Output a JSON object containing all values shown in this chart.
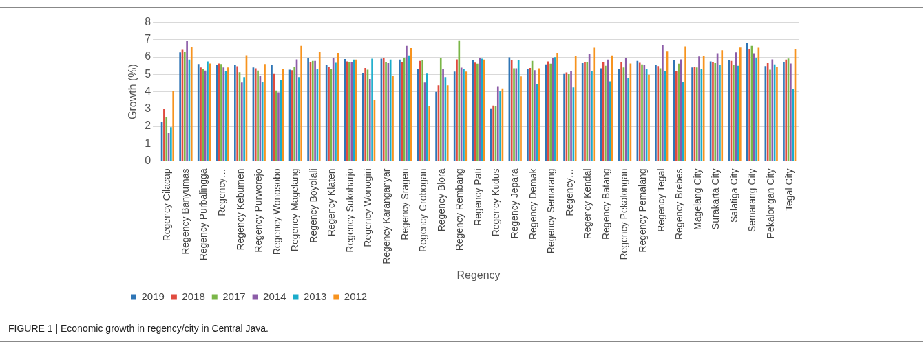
{
  "chart_data": {
    "type": "bar",
    "xlabel": "Regency",
    "ylabel": "Growth (%)",
    "categories": [
      "Regency Cilacap",
      "Regency Banyumas",
      "Regency Purbalingga",
      "Regency…",
      "Regency Kebumen",
      "Regency Purworejo",
      "Regency Wonosobo",
      "Regency Magelang",
      "Regency Boyolali",
      "Regency Klaten",
      "Regency Sukoharjo",
      "Regency Wonogiri",
      "Regency Karanganyar",
      "Regency Sragen",
      "Regency Grobogan",
      "Regency Blora",
      "Regency Rembang",
      "Regency Pati",
      "Regency Kudus",
      "Regency Jepara",
      "Regency Demak",
      "Regency Semarang",
      "Regency…",
      "Regency Kendal",
      "Regency Batang",
      "Regency Pekalongan",
      "Regency Pemalang",
      "Regency Tegal",
      "Regency Brebes",
      "Magelang City",
      "Surakarta City",
      "Salatiga City",
      "Semarang City",
      "Pekalongan City",
      "Tegal City"
    ],
    "series": [
      {
        "name": "2019",
        "color": "#2e75b6",
        "values": [
          2.28,
          6.27,
          5.6,
          5.55,
          5.55,
          5.4,
          5.57,
          5.27,
          5.93,
          5.53,
          5.88,
          5.09,
          5.9,
          5.85,
          5.32,
          3.99,
          5.16,
          5.83,
          3.04,
          5.98,
          5.32,
          5.58,
          5.02,
          5.65,
          5.35,
          5.3,
          5.78,
          5.57,
          5.83,
          5.4,
          5.75,
          5.83,
          6.81,
          5.48,
          5.73
        ]
      },
      {
        "name": "2018",
        "color": "#e04b3f",
        "values": [
          3.0,
          6.42,
          5.4,
          5.63,
          5.47,
          5.35,
          5.02,
          5.24,
          5.7,
          5.43,
          5.75,
          5.37,
          5.94,
          5.7,
          5.78,
          4.37,
          5.86,
          5.68,
          3.2,
          5.81,
          5.37,
          5.75,
          5.11,
          5.73,
          5.7,
          5.73,
          5.67,
          5.48,
          5.21,
          5.43,
          5.71,
          5.78,
          6.47,
          5.65,
          5.85
        ]
      },
      {
        "name": "2017",
        "color": "#7ab648",
        "values": [
          2.55,
          6.3,
          5.32,
          5.6,
          5.12,
          5.22,
          4.07,
          5.45,
          5.78,
          5.29,
          5.73,
          5.27,
          5.73,
          5.94,
          5.8,
          5.94,
          6.96,
          5.62,
          3.17,
          5.35,
          5.78,
          5.62,
          5.01,
          5.73,
          5.5,
          5.4,
          5.58,
          5.35,
          5.62,
          5.4,
          5.65,
          5.55,
          6.65,
          5.27,
          5.91
        ]
      },
      {
        "name": "2014",
        "color": "#8c5ca8",
        "values": [
          1.6,
          6.95,
          5.22,
          5.4,
          4.53,
          4.9,
          3.96,
          5.86,
          5.78,
          5.93,
          5.73,
          4.73,
          5.65,
          6.65,
          4.53,
          5.3,
          5.39,
          5.94,
          4.32,
          5.35,
          5.24,
          5.94,
          5.17,
          6.19,
          5.85,
          5.96,
          5.53,
          6.7,
          5.86,
          6.03,
          6.22,
          6.27,
          6.22,
          5.86,
          5.63
        ]
      },
      {
        "name": "2013",
        "color": "#1aaccb",
        "values": [
          1.95,
          5.85,
          5.75,
          5.19,
          4.84,
          4.56,
          4.66,
          4.84,
          5.29,
          5.67,
          5.85,
          5.9,
          5.85,
          6.09,
          5.04,
          4.84,
          5.29,
          5.9,
          4.06,
          5.83,
          4.43,
          5.99,
          4.25,
          5.19,
          4.6,
          4.78,
          5.29,
          5.21,
          4.55,
          5.32,
          5.55,
          5.5,
          5.94,
          5.58,
          4.17
        ]
      },
      {
        "name": "2012",
        "color": "#f7931e",
        "values": [
          4.02,
          6.58,
          5.63,
          5.4,
          6.1,
          5.6,
          5.32,
          6.65,
          6.3,
          6.24,
          5.85,
          3.55,
          4.91,
          6.52,
          3.15,
          4.37,
          5.16,
          5.85,
          4.19,
          4.88,
          5.35,
          6.24,
          6.06,
          6.54,
          6.09,
          5.63,
          4.98,
          6.35,
          6.62,
          6.08,
          6.39,
          6.55,
          6.54,
          5.45,
          6.45
        ]
      }
    ],
    "ylim": [
      0,
      8
    ],
    "yticks": [
      0,
      1,
      2,
      3,
      4,
      5,
      6,
      7,
      8
    ],
    "grid": "y",
    "legend": "bottom",
    "annotations": [
      "FIGURE 1 | Economic growth in regency/city in Central Java."
    ]
  }
}
